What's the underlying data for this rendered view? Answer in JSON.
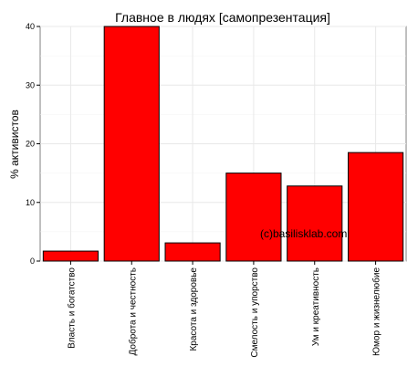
{
  "chart_data": {
    "type": "bar",
    "title": "Главное в людях [самопрезентация]",
    "ylabel": "% активистов",
    "xlabel": "",
    "categories": [
      "Власть и богатство",
      "Доброта и честность",
      "Красота и здоровье",
      "Смелость и упорство",
      "Ум и креативность",
      "Юмор и жизнелюбие"
    ],
    "values": [
      1.7,
      40,
      3.1,
      15,
      12.8,
      18.5
    ],
    "ylim": [
      0,
      40
    ],
    "yticks": [
      0,
      10,
      20,
      30,
      40
    ],
    "grid": true,
    "legend": "none",
    "bar_color": "#ff0000",
    "bar_edge_color": "#000000",
    "annotation": "(c)basilisklab.com"
  }
}
